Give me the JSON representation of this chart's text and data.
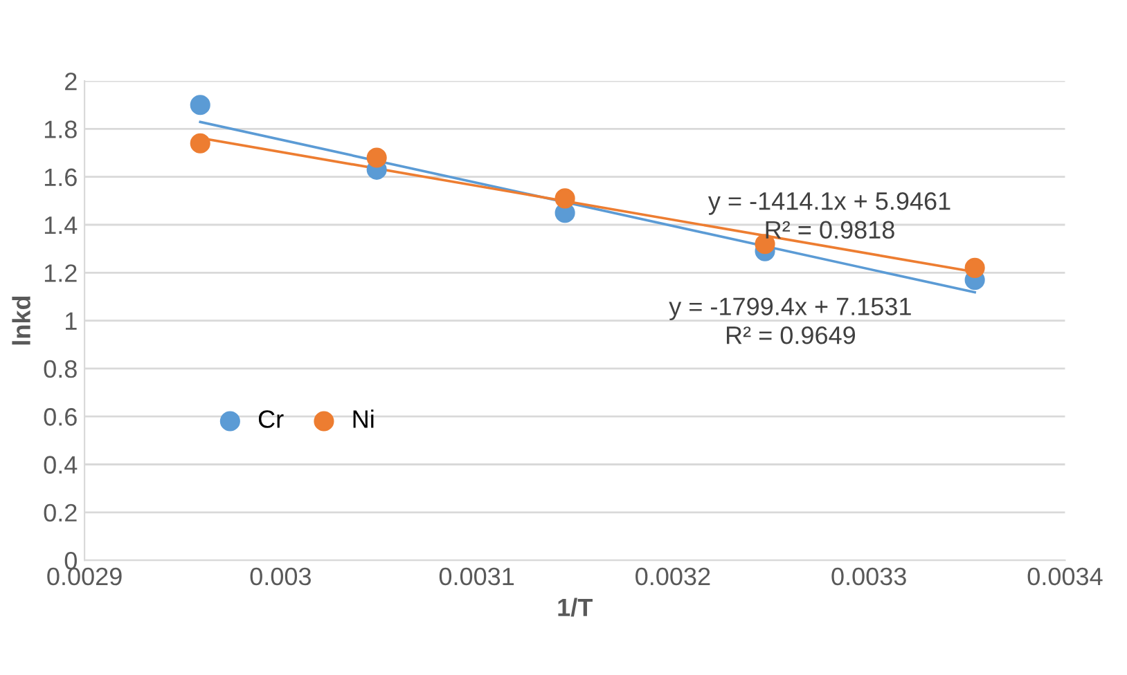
{
  "chart_data": {
    "type": "scatter",
    "xlabel": "1/T",
    "ylabel": "lnkd",
    "xlim": [
      0.0029,
      0.0034
    ],
    "xticks": [
      0.0029,
      0.003,
      0.0031,
      0.0032,
      0.0033,
      0.0034
    ],
    "ylim": [
      0,
      2
    ],
    "yticks": [
      0,
      0.2,
      0.4,
      0.6,
      0.8,
      1,
      1.2,
      1.4,
      1.6,
      1.8,
      2
    ],
    "grid": "y",
    "legend": "left",
    "series": [
      {
        "name": "Cr",
        "marker": "circle",
        "color": "#5b9bd5",
        "x": [
          0.002959,
          0.003049,
          0.003145,
          0.003247,
          0.003354
        ],
        "values": [
          1.9,
          1.63,
          1.45,
          1.29,
          1.17
        ]
      },
      {
        "name": "Ni",
        "marker": "circle",
        "color": "#ed7d31",
        "x": [
          0.002959,
          0.003049,
          0.003145,
          0.003247,
          0.003354
        ],
        "values": [
          1.74,
          1.68,
          1.51,
          1.32,
          1.22
        ]
      },
      {
        "type": "line",
        "color": "#5b9bd5",
        "x": [
          0.002959,
          0.003354
        ],
        "values": [
          1.829,
          1.118
        ]
      },
      {
        "type": "line",
        "color": "#ed7d31",
        "x": [
          0.002959,
          0.003354
        ],
        "values": [
          1.762,
          1.203
        ]
      }
    ],
    "annotations": [
      "y = -1414.1x + 5.9461",
      "R² = 0.9818",
      "y = -1799.4x + 7.1531",
      "R² = 0.9649"
    ]
  }
}
